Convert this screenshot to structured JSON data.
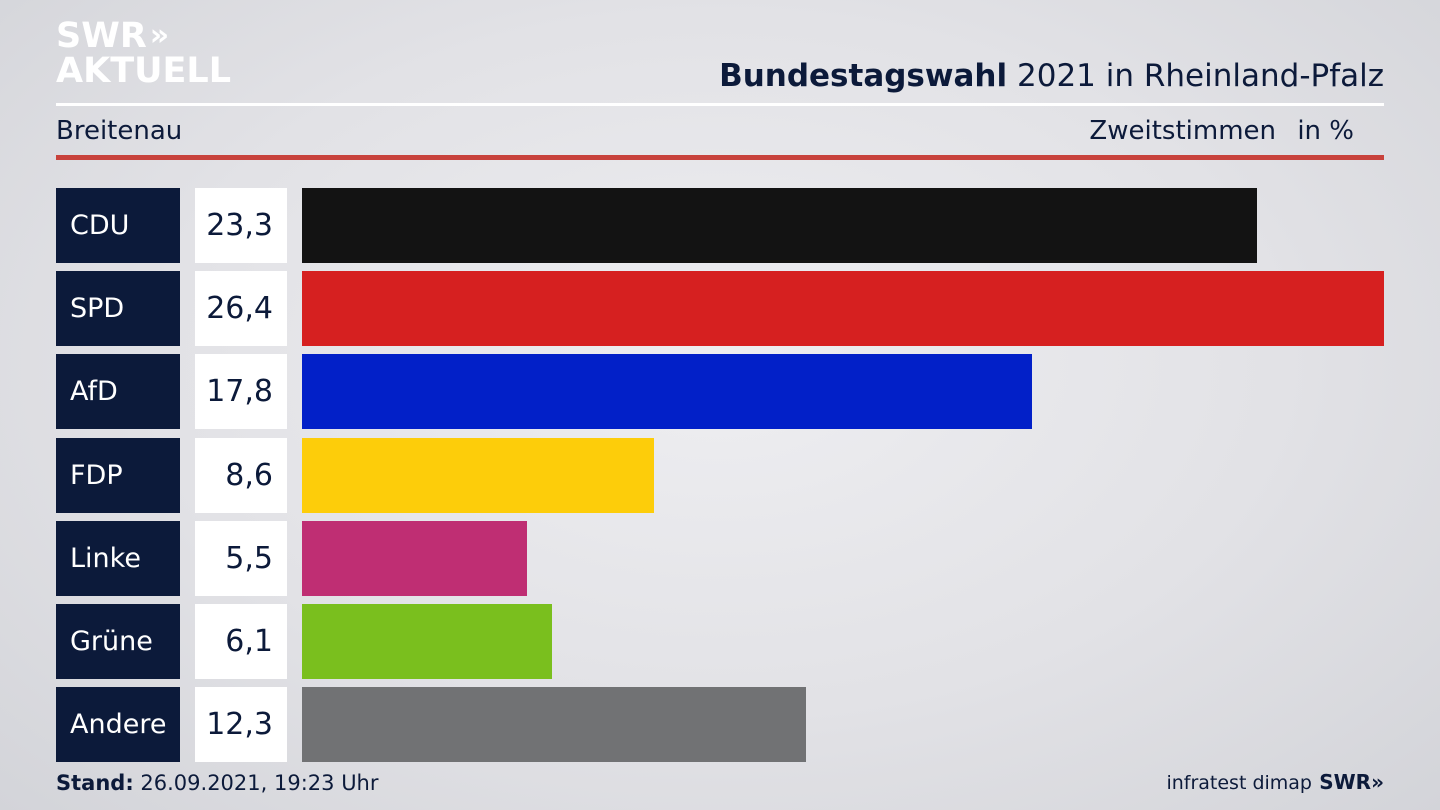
{
  "logo": {
    "line1": "SWR",
    "line2": "AKTUELL",
    "chevrons": "»"
  },
  "header": {
    "title_bold": "Bundestagswahl",
    "title_rest": "2021 in Rheinland-Pfalz",
    "region": "Breitenau",
    "measure": "Zweitstimmen",
    "unit": "in %"
  },
  "chart_data": {
    "type": "bar",
    "orientation": "horizontal",
    "categories": [
      "CDU",
      "SPD",
      "AfD",
      "FDP",
      "Linke",
      "Grüne",
      "Andere"
    ],
    "values": [
      23.3,
      26.4,
      17.8,
      8.6,
      5.5,
      6.1,
      12.3
    ],
    "value_labels": [
      "23,3",
      "26,4",
      "17,8",
      "8,6",
      "5,5",
      "6,1",
      "12,3"
    ],
    "colors": [
      "#131313",
      "#d62020",
      "#0220c8",
      "#fdcd0a",
      "#bf2e73",
      "#7abf1e",
      "#717274"
    ],
    "title": "Bundestagswahl 2021 in Rheinland-Pfalz",
    "xlabel": "",
    "ylabel": "",
    "xlim": [
      0,
      26.4
    ],
    "grid": false,
    "legend": "none"
  },
  "footer": {
    "stand_label": "Stand:",
    "stand_value": "26.09.2021, 19:23 Uhr",
    "source": "infratest dimap",
    "logo": "SWR»"
  }
}
